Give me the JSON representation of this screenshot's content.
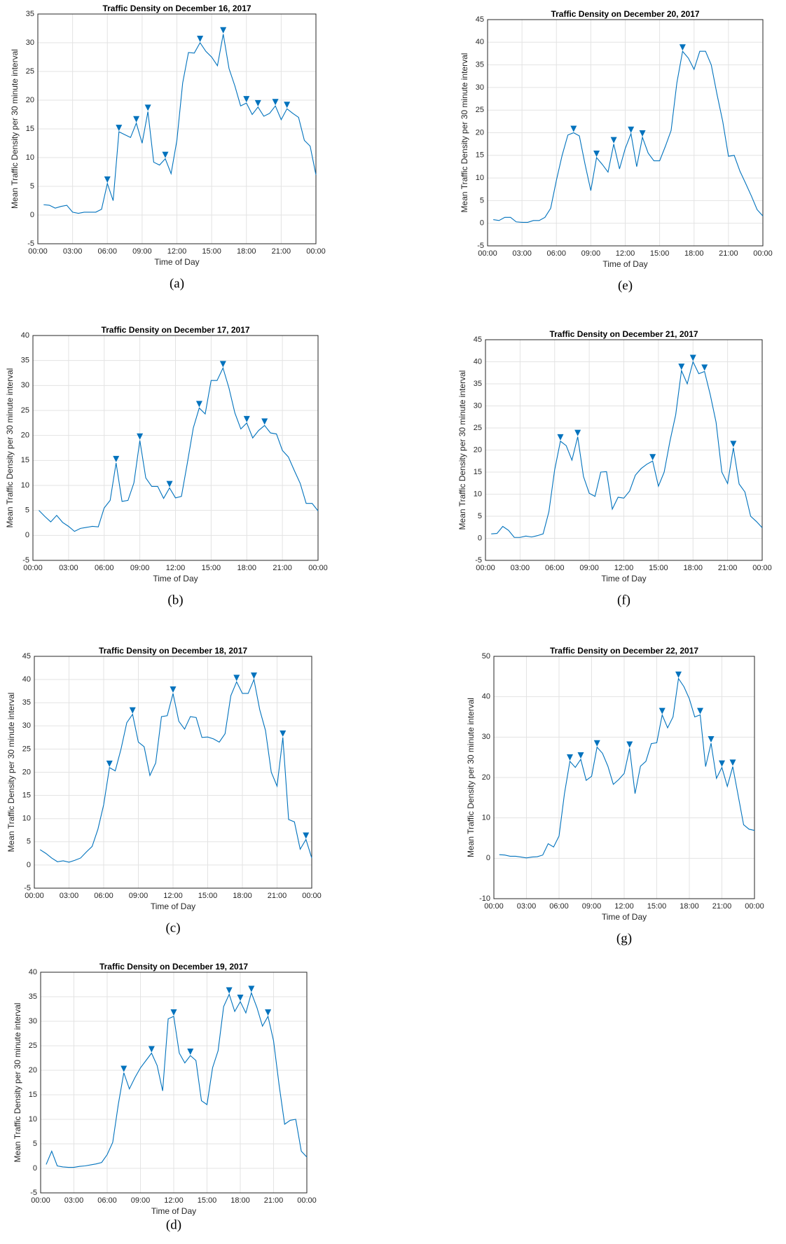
{
  "chart_data": [
    {
      "type": "line",
      "title": "Traffic Density on December 16, 2017",
      "xlabel": "Time of Day",
      "ylabel": "Mean Traffic Density per 30 minute interval",
      "caption": "(a)",
      "color": "#0072bd",
      "grid": true,
      "x": [
        0.5,
        1,
        1.5,
        2,
        2.5,
        3,
        3.5,
        4,
        4.5,
        5,
        5.5,
        6,
        6.5,
        7,
        7.5,
        8,
        8.5,
        9,
        9.5,
        10,
        10.5,
        11,
        11.5,
        12,
        12.5,
        13,
        13.5,
        14,
        14.5,
        15,
        15.5,
        16,
        16.5,
        17,
        17.5,
        18,
        18.5,
        19,
        19.5,
        20,
        20.5,
        21,
        21.5,
        22,
        22.5,
        23,
        23.5,
        24
      ],
      "values": [
        1.8,
        1.7,
        1.2,
        1.5,
        1.7,
        0.5,
        0.3,
        0.5,
        0.5,
        0.5,
        1,
        5.5,
        2.5,
        14.5,
        14,
        13.5,
        16,
        12.5,
        18,
        9.2,
        8.7,
        9.8,
        7.2,
        13,
        23,
        28.3,
        28.2,
        30,
        28.5,
        27.5,
        26,
        31.5,
        25.5,
        22.5,
        19,
        19.5,
        17.5,
        18.8,
        17.2,
        17.7,
        19,
        16.6,
        18.5,
        17.7,
        17,
        13,
        12,
        7
      ],
      "peaks": {
        "x": [
          6,
          7,
          8.5,
          9.5,
          11,
          14,
          16,
          18,
          19,
          20.5,
          21.5
        ],
        "values": [
          5.5,
          14.5,
          16,
          18,
          9.8,
          30,
          31.5,
          19.5,
          18.8,
          19,
          18.5
        ]
      },
      "xlim": [
        0,
        24
      ],
      "xticks": [
        {
          "value": 0,
          "label": "00:00"
        },
        {
          "value": 3,
          "label": "03:00"
        },
        {
          "value": 6,
          "label": "06:00"
        },
        {
          "value": 9,
          "label": "09:00"
        },
        {
          "value": 12,
          "label": "12:00"
        },
        {
          "value": 15,
          "label": "15:00"
        },
        {
          "value": 18,
          "label": "18:00"
        },
        {
          "value": 21,
          "label": "21:00"
        },
        {
          "value": 24,
          "label": "00:00"
        }
      ],
      "ylim": [
        -5,
        35
      ],
      "yticks": [
        -5,
        0,
        5,
        10,
        15,
        20,
        25,
        30,
        35
      ]
    },
    {
      "type": "line",
      "title": "Traffic Density on December 17, 2017",
      "xlabel": "Time of Day",
      "ylabel": "Mean Traffic Density per 30 minute interval",
      "caption": "(b)",
      "color": "#0072bd",
      "grid": true,
      "x": [
        0.5,
        1,
        1.5,
        2,
        2.5,
        3,
        3.5,
        4,
        4.5,
        5,
        5.5,
        6,
        6.5,
        7,
        7.5,
        8,
        8.5,
        9,
        9.5,
        10,
        10.5,
        11,
        11.5,
        12,
        12.5,
        13,
        13.5,
        14,
        14.5,
        15,
        15.5,
        16,
        16.5,
        17,
        17.5,
        18,
        18.5,
        19,
        19.5,
        20,
        20.5,
        21,
        21.5,
        22,
        22.5,
        23,
        23.5,
        24
      ],
      "values": [
        5,
        3.8,
        2.7,
        4,
        2.6,
        1.8,
        0.8,
        1.4,
        1.6,
        1.8,
        1.7,
        5.5,
        7,
        14.5,
        6.8,
        7,
        10.5,
        19,
        11.5,
        9.8,
        9.8,
        7.4,
        9.5,
        7.5,
        7.8,
        14.5,
        21.5,
        25.5,
        24.3,
        31,
        31,
        33.5,
        29.5,
        24.5,
        21.3,
        22.5,
        19.5,
        21,
        22,
        20.5,
        20.3,
        17,
        15.7,
        13,
        10.4,
        6.4,
        6.4,
        4.9
      ],
      "peaks": {
        "x": [
          7,
          9,
          11.5,
          14,
          16,
          18,
          19.5
        ],
        "values": [
          14.5,
          19,
          9.5,
          25.5,
          33.5,
          22.5,
          22
        ]
      },
      "xlim": [
        0,
        24
      ],
      "xticks": [
        {
          "value": 0,
          "label": "00:00"
        },
        {
          "value": 3,
          "label": "03:00"
        },
        {
          "value": 6,
          "label": "06:00"
        },
        {
          "value": 9,
          "label": "09:00"
        },
        {
          "value": 12,
          "label": "12:00"
        },
        {
          "value": 15,
          "label": "15:00"
        },
        {
          "value": 18,
          "label": "18:00"
        },
        {
          "value": 21,
          "label": "21:00"
        },
        {
          "value": 24,
          "label": "00:00"
        }
      ],
      "ylim": [
        -5,
        40
      ],
      "yticks": [
        -5,
        0,
        5,
        10,
        15,
        20,
        25,
        30,
        35,
        40
      ]
    },
    {
      "type": "line",
      "title": "Traffic Density on December 18, 2017",
      "xlabel": "Time of Day",
      "ylabel": "Mean Traffic Density per 30 minute interval",
      "caption": "(c)",
      "color": "#0072bd",
      "grid": true,
      "x": [
        0.5,
        1,
        1.5,
        2,
        2.5,
        3,
        3.5,
        4,
        4.5,
        5,
        5.5,
        6,
        6.5,
        7,
        7.5,
        8,
        8.5,
        9,
        9.5,
        10,
        10.5,
        11,
        11.5,
        12,
        12.5,
        13,
        13.5,
        14,
        14.5,
        15,
        15.5,
        16,
        16.5,
        17,
        17.5,
        18,
        18.5,
        19,
        19.5,
        20,
        20.5,
        21,
        21.5,
        22,
        22.5,
        23,
        23.5,
        24
      ],
      "values": [
        3.3,
        2.5,
        1.5,
        0.7,
        0.9,
        0.6,
        1,
        1.5,
        2.8,
        4,
        7.7,
        13,
        21,
        20.3,
        25,
        30.7,
        32.5,
        26.5,
        25.5,
        19.3,
        22,
        32,
        32.2,
        37,
        31,
        29.3,
        32,
        31.8,
        27.5,
        27.6,
        27.2,
        26.5,
        28.3,
        36.5,
        39.5,
        37,
        37,
        40,
        33.5,
        29,
        20,
        17,
        27.5,
        9.8,
        9.3,
        3.4,
        5.5,
        1.5
      ],
      "peaks": {
        "x": [
          6.5,
          8.5,
          12,
          17.5,
          19,
          21.5,
          23.5
        ],
        "values": [
          21,
          32.5,
          37,
          39.5,
          40,
          27.5,
          5.5
        ]
      },
      "xlim": [
        0,
        24
      ],
      "xticks": [
        {
          "value": 0,
          "label": "00:00"
        },
        {
          "value": 3,
          "label": "03:00"
        },
        {
          "value": 6,
          "label": "06:00"
        },
        {
          "value": 9,
          "label": "09:00"
        },
        {
          "value": 12,
          "label": "12:00"
        },
        {
          "value": 15,
          "label": "15:00"
        },
        {
          "value": 18,
          "label": "18:00"
        },
        {
          "value": 21,
          "label": "21:00"
        },
        {
          "value": 24,
          "label": "00:00"
        }
      ],
      "ylim": [
        -5,
        45
      ],
      "yticks": [
        -5,
        0,
        5,
        10,
        15,
        20,
        25,
        30,
        35,
        40,
        45
      ]
    },
    {
      "type": "line",
      "title": "Traffic Density on December 19, 2017",
      "xlabel": "Time of Day",
      "ylabel": "Mean Traffic Density per 30 minute interval",
      "caption": "(d)",
      "color": "#0072bd",
      "grid": true,
      "x": [
        0.5,
        1,
        1.5,
        2,
        2.5,
        3,
        3.5,
        4,
        4.5,
        5,
        5.5,
        6,
        6.5,
        7,
        7.5,
        8,
        8.5,
        9,
        9.5,
        10,
        10.5,
        11,
        11.5,
        12,
        12.5,
        13,
        13.5,
        14,
        14.5,
        15,
        15.5,
        16,
        16.5,
        17,
        17.5,
        18,
        18.5,
        19,
        19.5,
        20,
        20.5,
        21,
        21.5,
        22,
        22.5,
        23,
        23.5,
        24
      ],
      "values": [
        0.8,
        3.5,
        0.5,
        0.3,
        0.2,
        0.2,
        0.4,
        0.5,
        0.7,
        0.9,
        1.2,
        2.8,
        5.3,
        13,
        19.5,
        16.2,
        18.5,
        20.5,
        22,
        23.5,
        21,
        15.8,
        30.5,
        31,
        23.5,
        21.5,
        23,
        22,
        13.8,
        13,
        20.5,
        24,
        33,
        35.5,
        32,
        34,
        31.7,
        35.8,
        32.8,
        29,
        31,
        26,
        17,
        9,
        9.8,
        10,
        3.5,
        2.3
      ],
      "peaks": {
        "x": [
          7.5,
          10,
          12,
          13.5,
          17,
          18,
          19,
          20.5
        ],
        "values": [
          19.5,
          23.5,
          31,
          23,
          35.5,
          34,
          35.8,
          31
        ]
      },
      "xlim": [
        0,
        24
      ],
      "xticks": [
        {
          "value": 0,
          "label": "00:00"
        },
        {
          "value": 3,
          "label": "03:00"
        },
        {
          "value": 6,
          "label": "06:00"
        },
        {
          "value": 9,
          "label": "09:00"
        },
        {
          "value": 12,
          "label": "12:00"
        },
        {
          "value": 15,
          "label": "15:00"
        },
        {
          "value": 18,
          "label": "18:00"
        },
        {
          "value": 21,
          "label": "21:00"
        },
        {
          "value": 24,
          "label": "00:00"
        }
      ],
      "ylim": [
        -5,
        40
      ],
      "yticks": [
        -5,
        0,
        5,
        10,
        15,
        20,
        25,
        30,
        35,
        40
      ]
    },
    {
      "type": "line",
      "title": "Traffic Density on December 20, 2017",
      "xlabel": "Time of Day",
      "ylabel": "Mean Traffic Density per 30 minute interval",
      "caption": "(e)",
      "color": "#0072bd",
      "grid": true,
      "x": [
        0.5,
        1,
        1.5,
        2,
        2.5,
        3,
        3.5,
        4,
        4.5,
        5,
        5.5,
        6,
        6.5,
        7,
        7.5,
        8,
        8.5,
        9,
        9.5,
        10,
        10.5,
        11,
        11.5,
        12,
        12.5,
        13,
        13.5,
        14,
        14.5,
        15,
        15.5,
        16,
        16.5,
        17,
        17.5,
        18,
        18.5,
        19,
        19.5,
        20,
        20.5,
        21,
        21.5,
        22,
        22.5,
        23,
        23.5,
        24
      ],
      "values": [
        0.8,
        0.6,
        1.3,
        1.3,
        0.3,
        0.2,
        0.2,
        0.6,
        0.6,
        1.3,
        3.3,
        9.5,
        15,
        19.5,
        20,
        19.3,
        13,
        7.2,
        14.5,
        13,
        11.3,
        17.5,
        12,
        16.5,
        19.8,
        12.5,
        19,
        15.5,
        13.8,
        13.8,
        17,
        20.5,
        31,
        38,
        36.5,
        34,
        38,
        38,
        35,
        28.5,
        22.5,
        14.8,
        15,
        11.5,
        8.8,
        6,
        3,
        1.6
      ],
      "peaks": {
        "x": [
          7.5,
          9.5,
          11,
          12.5,
          13.5,
          17
        ],
        "values": [
          20,
          14.5,
          17.5,
          19.8,
          19,
          38
        ]
      },
      "xlim": [
        0,
        24
      ],
      "xticks": [
        {
          "value": 0,
          "label": "00:00"
        },
        {
          "value": 3,
          "label": "03:00"
        },
        {
          "value": 6,
          "label": "06:00"
        },
        {
          "value": 9,
          "label": "09:00"
        },
        {
          "value": 12,
          "label": "12:00"
        },
        {
          "value": 15,
          "label": "15:00"
        },
        {
          "value": 18,
          "label": "18:00"
        },
        {
          "value": 21,
          "label": "21:00"
        },
        {
          "value": 24,
          "label": "00:00"
        }
      ],
      "ylim": [
        -5,
        45
      ],
      "yticks": [
        -5,
        0,
        5,
        10,
        15,
        20,
        25,
        30,
        35,
        40,
        45
      ]
    },
    {
      "type": "line",
      "title": "Traffic Density on December 21, 2017",
      "xlabel": "Time of Day",
      "ylabel": "Mean Traffic Density per 30 minute interval",
      "caption": "(f)",
      "color": "#0072bd",
      "grid": true,
      "x": [
        0.5,
        1,
        1.5,
        2,
        2.5,
        3,
        3.5,
        4,
        4.5,
        5,
        5.5,
        6,
        6.5,
        7,
        7.5,
        8,
        8.5,
        9,
        9.5,
        10,
        10.5,
        11,
        11.5,
        12,
        12.5,
        13,
        13.5,
        14,
        14.5,
        15,
        15.5,
        16,
        16.5,
        17,
        17.5,
        18,
        18.5,
        19,
        19.5,
        20,
        20.5,
        21,
        21.5,
        22,
        22.5,
        23,
        23.5,
        24
      ],
      "values": [
        1,
        1.1,
        2.7,
        1.8,
        0.2,
        0.2,
        0.5,
        0.3,
        0.6,
        1,
        6,
        15.5,
        22,
        21,
        17.7,
        23,
        14,
        10.2,
        9.5,
        15,
        15.1,
        6.6,
        9.3,
        9.1,
        10.7,
        14.3,
        15.8,
        16.8,
        17.5,
        11.8,
        15,
        22,
        28,
        38,
        35,
        40,
        37.3,
        37.8,
        32.5,
        26.3,
        15,
        12.4,
        20.5,
        12.3,
        10.5,
        5,
        3.8,
        2.4
      ],
      "peaks": {
        "x": [
          6.5,
          8,
          14.5,
          17,
          18,
          19,
          21.5
        ],
        "values": [
          22,
          23,
          17.5,
          38,
          40,
          37.8,
          20.5
        ]
      },
      "xlim": [
        0,
        24
      ],
      "xticks": [
        {
          "value": 0,
          "label": "00:00"
        },
        {
          "value": 3,
          "label": "03:00"
        },
        {
          "value": 6,
          "label": "06:00"
        },
        {
          "value": 9,
          "label": "09:00"
        },
        {
          "value": 12,
          "label": "12:00"
        },
        {
          "value": 15,
          "label": "15:00"
        },
        {
          "value": 18,
          "label": "18:00"
        },
        {
          "value": 21,
          "label": "21:00"
        },
        {
          "value": 24,
          "label": "00:00"
        }
      ],
      "ylim": [
        -5,
        45
      ],
      "yticks": [
        -5,
        0,
        5,
        10,
        15,
        20,
        25,
        30,
        35,
        40,
        45
      ]
    },
    {
      "type": "line",
      "title": "Traffic Density on December 22, 2017",
      "xlabel": "Time of Day",
      "ylabel": "Mean Traffic Density per 30 minute interval",
      "caption": "(g)",
      "color": "#0072bd",
      "grid": true,
      "x": [
        0.5,
        1,
        1.5,
        2,
        2.5,
        3,
        3.5,
        4,
        4.5,
        5,
        5.5,
        6,
        6.5,
        7,
        7.5,
        8,
        8.5,
        9,
        9.5,
        10,
        10.5,
        11,
        11.5,
        12,
        12.5,
        13,
        13.5,
        14,
        14.5,
        15,
        15.5,
        16,
        16.5,
        17,
        17.5,
        18,
        18.5,
        19,
        19.5,
        20,
        20.5,
        21,
        21.5,
        22,
        22.5,
        23,
        23.5,
        24
      ],
      "values": [
        0.9,
        0.8,
        0.5,
        0.5,
        0.3,
        0.1,
        0.3,
        0.4,
        0.8,
        3.6,
        2.8,
        5.5,
        16,
        24,
        22.5,
        24.5,
        19.3,
        20.3,
        27.5,
        26,
        22.8,
        18.3,
        19.5,
        21,
        27.2,
        16,
        22.8,
        24,
        28.4,
        28.6,
        35.5,
        32.3,
        35,
        44.5,
        42.5,
        39.5,
        35,
        35.5,
        22.7,
        28.5,
        19.8,
        22.5,
        17.8,
        22.7,
        15.5,
        8.3,
        7.2,
        6.9
      ],
      "peaks": {
        "x": [
          7,
          8,
          9.5,
          12.5,
          15.5,
          17,
          19,
          20,
          21,
          22
        ],
        "values": [
          24,
          24.5,
          27.5,
          27.2,
          35.5,
          44.5,
          35.5,
          28.5,
          22.5,
          22.7
        ]
      },
      "xlim": [
        0,
        24
      ],
      "xticks": [
        {
          "value": 0,
          "label": "00:00"
        },
        {
          "value": 3,
          "label": "03:00"
        },
        {
          "value": 6,
          "label": "06:00"
        },
        {
          "value": 9,
          "label": "09:00"
        },
        {
          "value": 12,
          "label": "12:00"
        },
        {
          "value": 15,
          "label": "15:00"
        },
        {
          "value": 18,
          "label": "18:00"
        },
        {
          "value": 21,
          "label": "21:00"
        },
        {
          "value": 24,
          "label": "00:00"
        }
      ],
      "ylim": [
        -10,
        50
      ],
      "yticks": [
        -10,
        0,
        10,
        20,
        30,
        40,
        50
      ]
    }
  ]
}
